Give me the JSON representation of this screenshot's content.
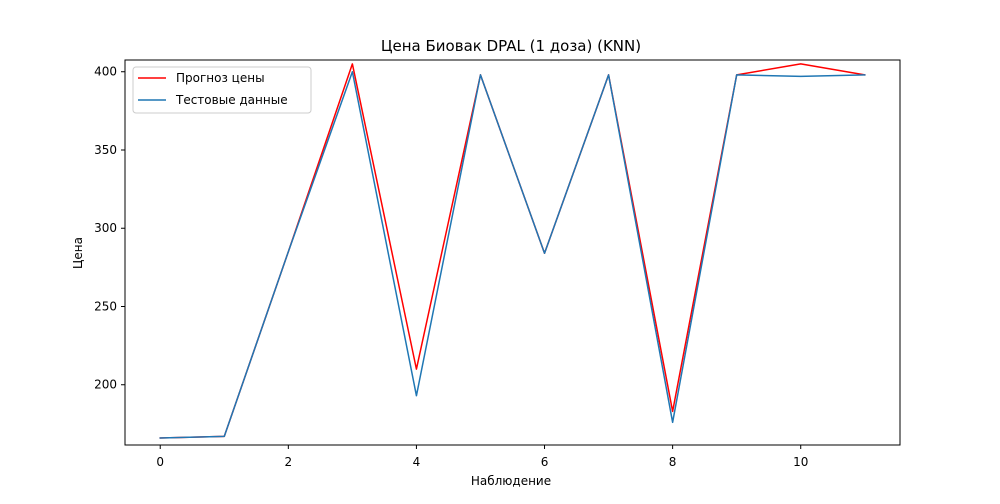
{
  "chart_data": {
    "type": "line",
    "title": "Цена Биовак DPAL (1 доза) (KNN)",
    "xlabel": "Наблюдение",
    "ylabel": "Цена",
    "x": [
      0,
      1,
      2,
      3,
      4,
      5,
      6,
      7,
      8,
      9,
      10,
      11
    ],
    "xlim": [
      -0.55,
      11.55
    ],
    "ylim": [
      161.5,
      407.5
    ],
    "xticks": [
      0,
      2,
      4,
      6,
      8,
      10
    ],
    "yticks": [
      200,
      250,
      300,
      350,
      400
    ],
    "grid": false,
    "legend_position": "top-left",
    "series": [
      {
        "name": "Прогноз цены",
        "color": "#ff0000",
        "values": [
          166,
          167,
          285,
          405,
          210,
          398,
          284,
          398,
          183,
          398,
          405,
          398
        ]
      },
      {
        "name": "Тестовые данные",
        "color": "#1f77b4",
        "values": [
          166,
          167,
          285,
          400,
          193,
          398,
          284,
          398,
          176,
          398,
          397,
          398
        ]
      }
    ]
  }
}
